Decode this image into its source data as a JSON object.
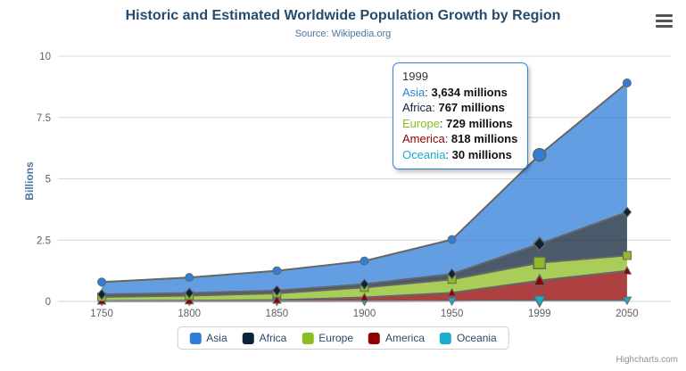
{
  "header": {
    "title": "Historic and Estimated Worldwide Population Growth by Region",
    "subtitle": "Source: Wikipedia.org"
  },
  "chart_data": {
    "type": "area",
    "stacking": "normal",
    "title": "Historic and Estimated Worldwide Population Growth by Region",
    "subtitle": "Source: Wikipedia.org",
    "categories": [
      "1750",
      "1800",
      "1850",
      "1900",
      "1950",
      "1999",
      "2050"
    ],
    "ylabel": "Billions",
    "xlabel": "",
    "yticks": [
      "0",
      "2.5",
      "5",
      "7.5",
      "10"
    ],
    "ymax_millions": 10000,
    "unit": "millions",
    "grid": true,
    "legend_position": "bottom-center",
    "series": [
      {
        "name": "Asia",
        "color": "#2f7ed8",
        "marker": "circle",
        "values": [
          502,
          635,
          809,
          947,
          1402,
          3634,
          5268
        ]
      },
      {
        "name": "Africa",
        "color": "#0d233a",
        "marker": "diamond",
        "values": [
          106,
          107,
          111,
          133,
          221,
          767,
          1766
        ]
      },
      {
        "name": "Europe",
        "color": "#8bbc21",
        "marker": "square",
        "values": [
          163,
          203,
          276,
          408,
          547,
          729,
          628
        ]
      },
      {
        "name": "America",
        "color": "#910000",
        "marker": "triangle",
        "values": [
          18,
          31,
          54,
          156,
          339,
          818,
          1201
        ]
      },
      {
        "name": "Oceania",
        "color": "#1aadce",
        "marker": "triangle-down",
        "values": [
          2,
          2,
          2,
          6,
          13,
          30,
          46
        ]
      }
    ],
    "stack_order_bottom_to_top": [
      "Oceania",
      "America",
      "Europe",
      "Africa",
      "Asia"
    ],
    "hover_category": "1999",
    "fill_opacity": 0.75,
    "colors": {
      "line": "#666666",
      "grid": "#d8d8d8",
      "axis_line": "#c0d0e0",
      "axis_label": "#606060",
      "title": "#274b6d",
      "subtitle": "#4d759e"
    }
  },
  "tooltip": {
    "header": "1999",
    "rows": [
      {
        "name": "Asia",
        "color": "#2f7ed8",
        "value": "3,634 millions"
      },
      {
        "name": "Africa",
        "color": "#0d233a",
        "value": "767 millions"
      },
      {
        "name": "Europe",
        "color": "#8bbc21",
        "value": "729 millions"
      },
      {
        "name": "America",
        "color": "#910000",
        "value": "818 millions"
      },
      {
        "name": "Oceania",
        "color": "#1aadce",
        "value": "30 millions"
      }
    ]
  },
  "legend": {
    "items": [
      "Asia",
      "Africa",
      "Europe",
      "America",
      "Oceania"
    ]
  },
  "credits": {
    "label": "Highcharts.com"
  }
}
